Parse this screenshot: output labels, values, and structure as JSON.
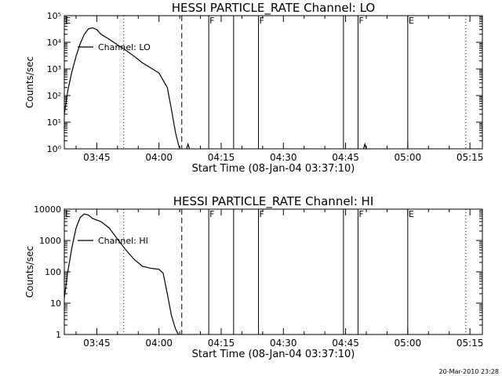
{
  "footer": {
    "timestamp": "20-Mar-2010 23:28"
  },
  "chart_data": [
    {
      "type": "line",
      "title": "HESSI PARTICLE_RATE Channel: LO",
      "xlabel": "Start Time (08-Jan-04 03:37:10)",
      "ylabel": "Counts/sec",
      "yscale": "log",
      "ylim": [
        1,
        100000
      ],
      "y_ticks": [
        {
          "value": 1,
          "label": "10⁰"
        },
        {
          "value": 10,
          "label": "10¹"
        },
        {
          "value": 100,
          "label": "10²"
        },
        {
          "value": 1000,
          "label": "10³"
        },
        {
          "value": 10000,
          "label": "10⁴"
        },
        {
          "value": 100000,
          "label": "10⁵"
        }
      ],
      "xlim": [
        "03:37:10",
        "05:18:00"
      ],
      "x_ticks": [
        "03:45",
        "04:00",
        "04:15",
        "04:30",
        "04:45",
        "05:00",
        "05:15"
      ],
      "legend": {
        "label": "Channel: LO",
        "placement": "top-left"
      },
      "series": [
        {
          "name": "Channel: LO",
          "x": [
            "03:37:10",
            "03:38:00",
            "03:39:00",
            "03:40:00",
            "03:41:00",
            "03:42:00",
            "03:43:00",
            "03:44:00",
            "03:45:00",
            "03:46:00",
            "03:48:00",
            "03:50:00",
            "03:52:00",
            "03:54:00",
            "03:56:00",
            "03:58:00",
            "04:00:00",
            "04:02:00",
            "04:03:00",
            "04:04:00",
            "04:04:40",
            "04:05:00"
          ],
          "y": [
            20,
            150,
            800,
            3000,
            9000,
            20000,
            32000,
            35000,
            30000,
            20000,
            13000,
            8000,
            5000,
            3000,
            1700,
            1100,
            700,
            200,
            30,
            4,
            1.5,
            1
          ]
        },
        {
          "name": "Channel: LO",
          "x": [
            "04:06:40",
            "04:07:00",
            "04:07:20"
          ],
          "y": [
            1,
            1.5,
            1
          ]
        },
        {
          "name": "Channel: LO",
          "x": [
            "04:49:20",
            "04:49:40",
            "04:50:00"
          ],
          "y": [
            1,
            1.5,
            1
          ]
        }
      ],
      "markers": [
        {
          "label": "E",
          "time": "03:37:10",
          "style": "solid"
        },
        {
          "label": "",
          "time": "03:51:30",
          "style": "dotted"
        },
        {
          "label": "",
          "time": "04:05:30",
          "style": "dashed"
        },
        {
          "label": "F",
          "time": "04:12:00",
          "style": "solid"
        },
        {
          "label": "",
          "time": "04:18:00",
          "style": "solid"
        },
        {
          "label": "F",
          "time": "04:24:00",
          "style": "solid"
        },
        {
          "label": "",
          "time": "04:44:30",
          "style": "solid"
        },
        {
          "label": "F",
          "time": "04:48:00",
          "style": "solid"
        },
        {
          "label": "E",
          "time": "05:00:00",
          "style": "solid"
        },
        {
          "label": "",
          "time": "05:14:00",
          "style": "dotted"
        }
      ]
    },
    {
      "type": "line",
      "title": "HESSI PARTICLE_RATE Channel: HI",
      "xlabel": "Start Time (08-Jan-04 03:37:10)",
      "ylabel": "Counts/sec",
      "yscale": "log",
      "ylim": [
        1,
        10000
      ],
      "y_ticks": [
        {
          "value": 1,
          "label": "1"
        },
        {
          "value": 10,
          "label": "10"
        },
        {
          "value": 100,
          "label": "100"
        },
        {
          "value": 1000,
          "label": "1000"
        },
        {
          "value": 10000,
          "label": "10000"
        }
      ],
      "xlim": [
        "03:37:10",
        "05:18:00"
      ],
      "x_ticks": [
        "03:45",
        "04:00",
        "04:15",
        "04:30",
        "04:45",
        "05:00",
        "05:15"
      ],
      "legend": {
        "label": "Channel: HI",
        "placement": "top-left"
      },
      "series": [
        {
          "name": "Channel: HI",
          "x": [
            "03:37:10",
            "03:38:00",
            "03:39:00",
            "03:40:00",
            "03:41:00",
            "03:42:00",
            "03:43:00",
            "03:44:00",
            "03:45:00",
            "03:46:00",
            "03:48:00",
            "03:50:00",
            "03:52:00",
            "03:54:00",
            "03:56:00",
            "03:58:00",
            "03:59:00",
            "04:00:00",
            "04:01:00",
            "04:02:00",
            "04:03:00",
            "04:04:00",
            "04:04:40"
          ],
          "y": [
            15,
            100,
            600,
            2500,
            5500,
            7000,
            6500,
            5000,
            4500,
            4000,
            2500,
            1100,
            500,
            250,
            150,
            130,
            125,
            120,
            90,
            20,
            4,
            1.5,
            1
          ]
        }
      ],
      "markers": [
        {
          "label": "E",
          "time": "03:37:10",
          "style": "solid"
        },
        {
          "label": "",
          "time": "03:51:30",
          "style": "dotted"
        },
        {
          "label": "",
          "time": "04:05:30",
          "style": "dashed"
        },
        {
          "label": "F",
          "time": "04:12:00",
          "style": "solid"
        },
        {
          "label": "",
          "time": "04:18:00",
          "style": "solid"
        },
        {
          "label": "F",
          "time": "04:24:00",
          "style": "solid"
        },
        {
          "label": "",
          "time": "04:44:30",
          "style": "solid"
        },
        {
          "label": "F",
          "time": "04:48:00",
          "style": "solid"
        },
        {
          "label": "E",
          "time": "05:00:00",
          "style": "solid"
        },
        {
          "label": "",
          "time": "05:14:00",
          "style": "dotted"
        }
      ]
    }
  ]
}
